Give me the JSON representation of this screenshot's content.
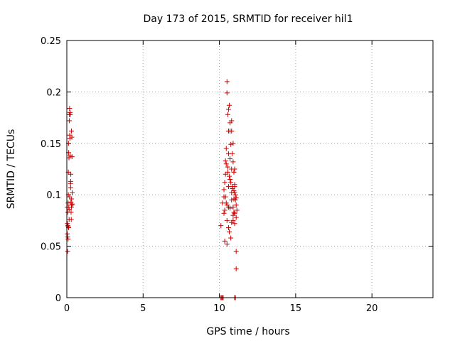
{
  "chart_data": {
    "type": "scatter",
    "title": "Day 173 of 2015, SRMTID for receiver hil1",
    "xlabel": "GPS time / hours",
    "ylabel": "SRMTID / TECUs",
    "xlim": [
      0,
      24
    ],
    "ylim": [
      0,
      0.25
    ],
    "xticks": [
      0,
      5,
      10,
      15,
      20
    ],
    "yticks": [
      0,
      0.05,
      0.1,
      0.15,
      0.2,
      0.25
    ],
    "xtick_labels": [
      "0",
      "5",
      "10",
      "15",
      "20"
    ],
    "ytick_labels": [
      "0",
      "0.05",
      "0.1",
      "0.15",
      "0.2",
      "0.25"
    ],
    "grid": true,
    "marker": "+",
    "color": "#cc0000",
    "series": [
      {
        "x": [
          0.02,
          0.03,
          0.04,
          0.05,
          0.05,
          0.06,
          0.07,
          0.08,
          0.08,
          0.09,
          0.1,
          0.1,
          0.11,
          0.12,
          0.13,
          0.14,
          0.15,
          0.15,
          0.16,
          0.17,
          0.18,
          0.19,
          0.2,
          0.21,
          0.22,
          0.23,
          0.24,
          0.25,
          0.26,
          0.27,
          0.28,
          0.29,
          0.3,
          0.31,
          0.32,
          0.33,
          0.34,
          0.35,
          0.36,
          0.12,
          0.18,
          0.25,
          0.3
        ],
        "y": [
          0.088,
          0.062,
          0.072,
          0.045,
          0.059,
          0.083,
          0.07,
          0.057,
          0.092,
          0.069,
          0.122,
          0.1,
          0.15,
          0.141,
          0.088,
          0.136,
          0.076,
          0.086,
          0.172,
          0.178,
          0.184,
          0.158,
          0.155,
          0.18,
          0.138,
          0.178,
          0.111,
          0.107,
          0.12,
          0.093,
          0.083,
          0.076,
          0.088,
          0.096,
          0.09,
          0.156,
          0.137,
          0.102,
          0.091,
          0.068,
          0.098,
          0.113,
          0.162
        ]
      },
      {
        "x": [
          10.1,
          10.2,
          10.3,
          10.3,
          10.35,
          10.4,
          10.45,
          10.5,
          10.5,
          10.55,
          10.6,
          10.6,
          10.65,
          10.7,
          10.7,
          10.75,
          10.8,
          10.8,
          10.85,
          10.9,
          10.9,
          10.95,
          11.0,
          11.0,
          11.05,
          11.1,
          11.1,
          11.15,
          10.4,
          10.5,
          10.6,
          10.7,
          10.8,
          10.9,
          11.0,
          10.45,
          10.55,
          10.65,
          10.75,
          10.85,
          10.95,
          11.05,
          10.35,
          10.5,
          10.6,
          10.75,
          10.9,
          11.0,
          11.1,
          10.3,
          10.45,
          10.6,
          10.8,
          10.95,
          11.1,
          10.4,
          10.55,
          10.7,
          10.85,
          11.0,
          10.35,
          10.5,
          10.65,
          10.8,
          10.95,
          11.1,
          10.6,
          10.7,
          10.8,
          10.9,
          11.0
        ],
        "y": [
          0.07,
          0.092,
          0.082,
          0.105,
          0.055,
          0.12,
          0.145,
          0.21,
          0.199,
          0.178,
          0.183,
          0.162,
          0.187,
          0.17,
          0.162,
          0.149,
          0.172,
          0.162,
          0.14,
          0.15,
          0.132,
          0.122,
          0.125,
          0.11,
          0.1,
          0.045,
          0.028,
          0.085,
          0.098,
          0.09,
          0.088,
          0.087,
          0.095,
          0.08,
          0.072,
          0.13,
          0.122,
          0.118,
          0.112,
          0.108,
          0.104,
          0.095,
          0.085,
          0.075,
          0.068,
          0.058,
          0.088,
          0.082,
          0.078,
          0.098,
          0.092,
          0.108,
          0.102,
          0.096,
          0.09,
          0.133,
          0.127,
          0.115,
          0.106,
          0.102,
          0.112,
          0.052,
          0.064,
          0.073,
          0.083,
          0.097,
          0.14,
          0.135,
          0.125,
          0.075,
          0.108
        ],
        "color": "#cc0000"
      },
      {
        "x": [
          10.1,
          10.15,
          10.2,
          10.25,
          11.0,
          11.05
        ],
        "y": [
          0.0,
          0.0,
          0.0,
          0.0,
          0.0,
          0.0
        ],
        "color": "#cc0000"
      }
    ]
  }
}
